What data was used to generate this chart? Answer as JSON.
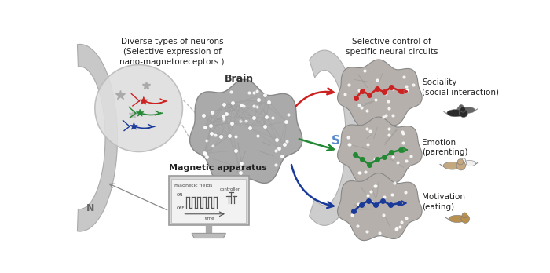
{
  "bg_color": "#ffffff",
  "title_text": "Diverse types of neurons\n(Selective expression of\nnano-magnetoreceptors )",
  "title2_text": "Selective control of\nspecific neural circuits",
  "brain_label": "Brain",
  "magnet_label": "Magnetic apparatus",
  "label_N": "N",
  "label_S": "S",
  "sociality_label": "Sociality\n(social interaction)",
  "emotion_label": "Emotion\n(parenting)",
  "motivation_label": "Motivation\n(eating)",
  "red_color": "#cc2222",
  "green_color": "#228833",
  "blue_color": "#1a3a99",
  "neuron_circle_bg": "#d8d8d8",
  "brain_color": "#aaaaaa",
  "small_brain_color": "#b0a8a0",
  "magnet_left_color": "#c8c8c8",
  "magnet_right_color": "#c8c8c8",
  "monitor_bg": "#e5e5e5",
  "monitor_screen": "#f0f0f0"
}
